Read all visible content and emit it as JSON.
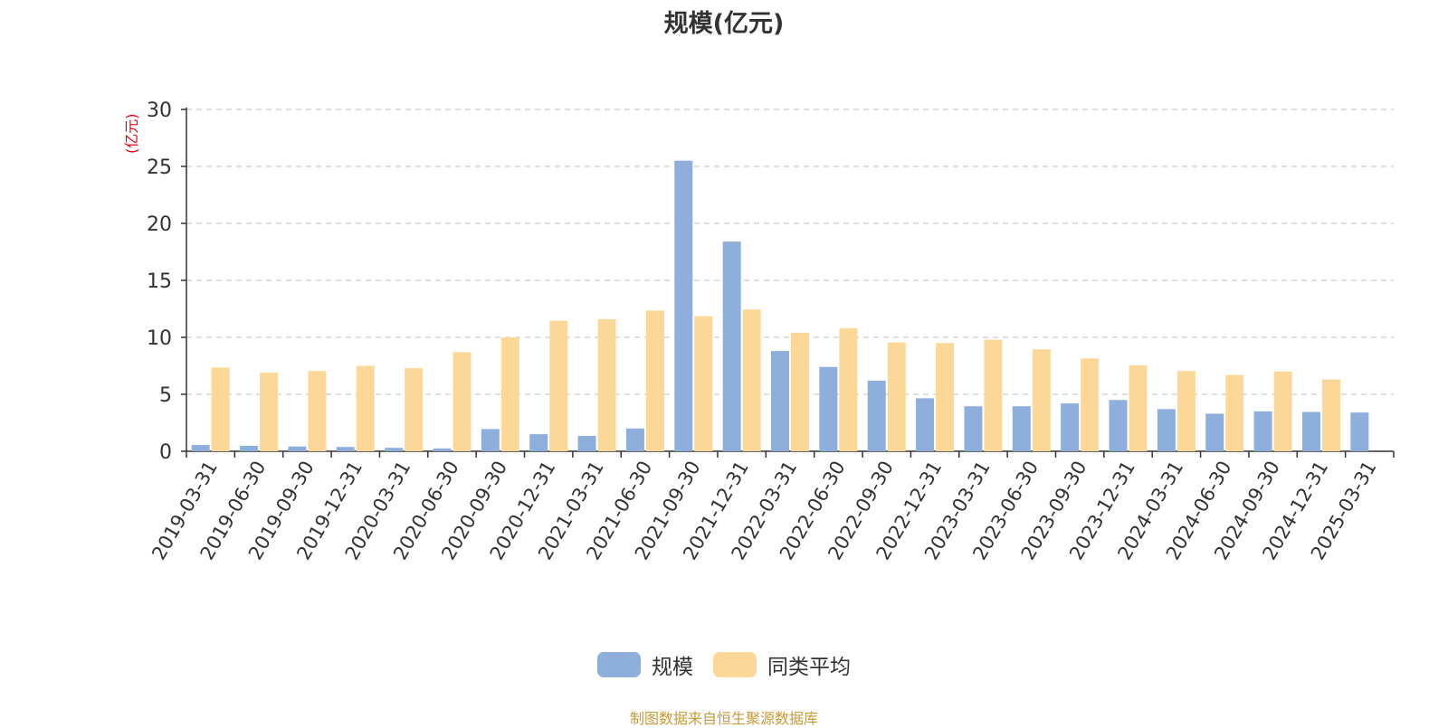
{
  "chart_data": {
    "type": "bar",
    "title": "规模(亿元)",
    "ylabel": "(亿元)",
    "ylim": [
      0,
      30
    ],
    "yticks": [
      0,
      5,
      10,
      15,
      20,
      25,
      30
    ],
    "grid": true,
    "legend_position": "bottom",
    "categories": [
      "2019-03-31",
      "2019-06-30",
      "2019-09-30",
      "2019-12-31",
      "2020-03-31",
      "2020-06-30",
      "2020-09-30",
      "2020-12-31",
      "2021-03-31",
      "2021-06-30",
      "2021-09-30",
      "2021-12-31",
      "2022-03-31",
      "2022-06-30",
      "2022-09-30",
      "2022-12-31",
      "2023-03-31",
      "2023-06-30",
      "2023-09-30",
      "2023-12-31",
      "2024-03-31",
      "2024-06-30",
      "2024-09-30",
      "2024-12-31",
      "2025-03-31"
    ],
    "series": [
      {
        "name": "规模",
        "color": "#8eaedb",
        "values": [
          0.55,
          0.48,
          0.42,
          0.38,
          0.3,
          0.25,
          1.95,
          1.5,
          1.35,
          2.0,
          25.5,
          18.4,
          8.8,
          7.4,
          6.2,
          4.65,
          3.95,
          3.95,
          4.2,
          4.5,
          3.7,
          3.3,
          3.5,
          3.45,
          3.4
        ]
      },
      {
        "name": "同类平均",
        "color": "#fcd898",
        "values": [
          7.35,
          6.9,
          7.05,
          7.5,
          7.3,
          8.7,
          10.0,
          11.45,
          11.6,
          12.35,
          11.85,
          12.45,
          10.4,
          10.8,
          9.55,
          9.5,
          9.8,
          8.95,
          8.15,
          7.55,
          7.05,
          6.7,
          7.0,
          6.3,
          null
        ]
      }
    ]
  },
  "footer": {
    "source": "制图数据来自恒生聚源数据库"
  }
}
